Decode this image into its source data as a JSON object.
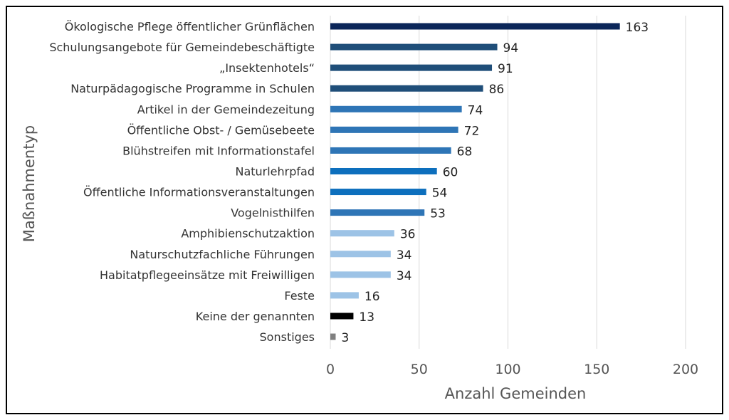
{
  "chart_data": {
    "type": "bar",
    "orientation": "horizontal",
    "title": "",
    "xlabel": "Anzahl Gemeinden",
    "ylabel": "Maßnahmentyp",
    "xlim": [
      0,
      200
    ],
    "xticks": [
      0,
      50,
      100,
      150,
      200
    ],
    "grid": true,
    "categories": [
      "Ökologische Pflege öffentlicher Grünflächen",
      "Schulungsangebote für Gemeindebeschäftigte",
      "„Insektenhotels“",
      "Naturpädagogische Programme in Schulen",
      "Artikel in der Gemeindezeitung",
      "Öffentliche Obst- / Gemüsebeete",
      "Blühstreifen mit Informationstafel",
      "Naturlehrpfad",
      "Öffentliche Informationsveranstaltungen",
      "Vogelnisthilfen",
      "Amphibienschutzaktion",
      "Naturschutzfachliche Führungen",
      "Habitatpflegeeinsätze mit Freiwilligen",
      "Feste",
      "Keine der genannten",
      "Sonstiges"
    ],
    "values": [
      163,
      94,
      91,
      86,
      74,
      72,
      68,
      60,
      54,
      53,
      36,
      34,
      34,
      16,
      13,
      3
    ],
    "colors": [
      "#0b2659",
      "#1f4e79",
      "#1f4e79",
      "#1f4e79",
      "#2e75b6",
      "#2e75b6",
      "#2e75b6",
      "#0d6fbd",
      "#0d6fbd",
      "#2e75b6",
      "#9dc3e6",
      "#9dc3e6",
      "#9dc3e6",
      "#9dc3e6",
      "#000000",
      "#808080"
    ]
  }
}
